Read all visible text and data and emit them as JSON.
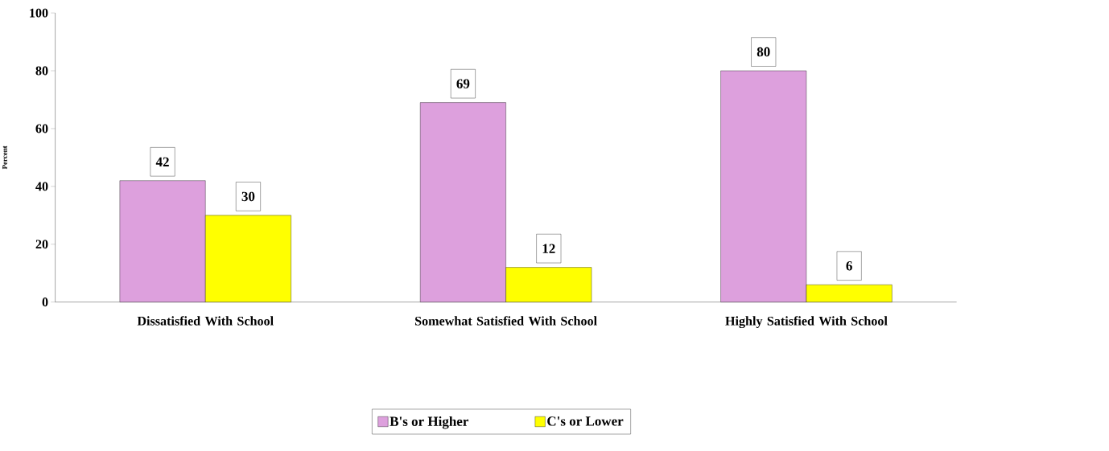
{
  "chart_data": {
    "type": "bar",
    "ylabel": "Percent",
    "categories": [
      "Dissatisfied With School",
      "Somewhat Satisfied With School",
      "Highly Satisfied With School"
    ],
    "series": [
      {
        "name": "B's or Higher",
        "color": "#dda0dd",
        "values": [
          42,
          69,
          80
        ]
      },
      {
        "name": "C's or Lower",
        "color": "#ffff00",
        "values": [
          30,
          12,
          6
        ]
      }
    ],
    "ylim": [
      0,
      100
    ],
    "yticks": [
      0,
      20,
      40,
      60,
      80,
      100
    ],
    "data_labels": true,
    "grid": false,
    "legend": "bottom"
  }
}
